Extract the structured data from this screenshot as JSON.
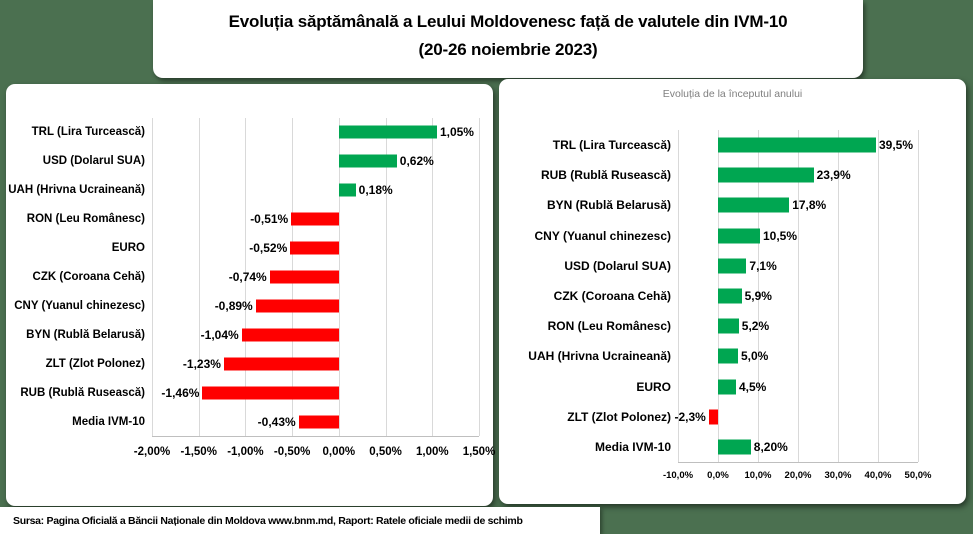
{
  "header": {
    "title_line1": "Evoluția săptămânală a Leului Moldovenesc față de valutele din IVM-10",
    "title_line2": "(20-26 noiembrie 2023)"
  },
  "footer": {
    "source_text": "Sursa: Pagina Oficială a Băncii Naționale din Moldova www.bnm.md, Raport: Ratele oficiale medii de schimb"
  },
  "colors": {
    "background": "#4B7050",
    "panel": "#FFFFFF",
    "positive_bar": "#00A651",
    "negative_bar": "#FF0000",
    "gridline": "#D9D9D9",
    "axis_line": "#BFBFBF",
    "subtitle_gray": "#7F7F7F",
    "text": "#000000"
  },
  "chart_data": [
    {
      "id": "weekly",
      "type": "bar",
      "orientation": "horizontal",
      "title": "",
      "categories": [
        "TRL (Lira Turcească)",
        "USD (Dolarul SUA)",
        "UAH (Hrivna Ucraineană)",
        "RON (Leu Românesc)",
        "EURO",
        "CZK (Coroana Cehă)",
        "CNY (Yuanul chinezesc)",
        "BYN (Rublă Belarusă)",
        "ZLT (Zlot Polonez)",
        "RUB (Rublă Rusească)",
        "Media IVM-10"
      ],
      "values": [
        1.05,
        0.62,
        0.18,
        -0.51,
        -0.52,
        -0.74,
        -0.89,
        -1.04,
        -1.23,
        -1.46,
        -0.43
      ],
      "value_labels": [
        "1,05%",
        "0,62%",
        "0,18%",
        "-0,51%",
        "-0,52%",
        "-0,74%",
        "-0,89%",
        "-1,04%",
        "-1,23%",
        "-1,46%",
        "-0,43%"
      ],
      "xlim": [
        -2.0,
        1.5
      ],
      "tick_values": [
        -2.0,
        -1.5,
        -1.0,
        -0.5,
        0.0,
        0.5,
        1.0,
        1.5
      ],
      "tick_labels": [
        "-2,00%",
        "-1,50%",
        "-1,00%",
        "-0,50%",
        "0,00%",
        "0,50%",
        "1,00%",
        "1,50%"
      ],
      "grid": true,
      "legend": "none"
    },
    {
      "id": "ytd",
      "type": "bar",
      "orientation": "horizontal",
      "title": "Evoluția de la începutul anului",
      "categories": [
        "TRL (Lira Turcească)",
        "RUB (Rublă Rusească)",
        "BYN (Rublă Belarusă)",
        "CNY (Yuanul chinezesc)",
        "USD (Dolarul SUA)",
        "CZK (Coroana Cehă)",
        "RON (Leu Românesc)",
        "UAH (Hrivna Ucraineană)",
        "EURO",
        "ZLT (Zlot Polonez)",
        "Media IVM-10"
      ],
      "values": [
        39.5,
        23.9,
        17.8,
        10.5,
        7.1,
        5.9,
        5.2,
        5.0,
        4.5,
        -2.3,
        8.2
      ],
      "value_labels": [
        "39,5%",
        "23,9%",
        "17,8%",
        "10,5%",
        "7,1%",
        "5,9%",
        "5,2%",
        "5,0%",
        "4,5%",
        "-2,3%",
        "8,20%"
      ],
      "xlim": [
        -10.0,
        50.0
      ],
      "tick_values": [
        -10.0,
        0.0,
        10.0,
        20.0,
        30.0,
        40.0,
        50.0
      ],
      "tick_labels": [
        "-10,0%",
        "0,0%",
        "10,0%",
        "20,0%",
        "30,0%",
        "40,0%",
        "50,0%"
      ],
      "grid": true,
      "legend": "none"
    }
  ]
}
